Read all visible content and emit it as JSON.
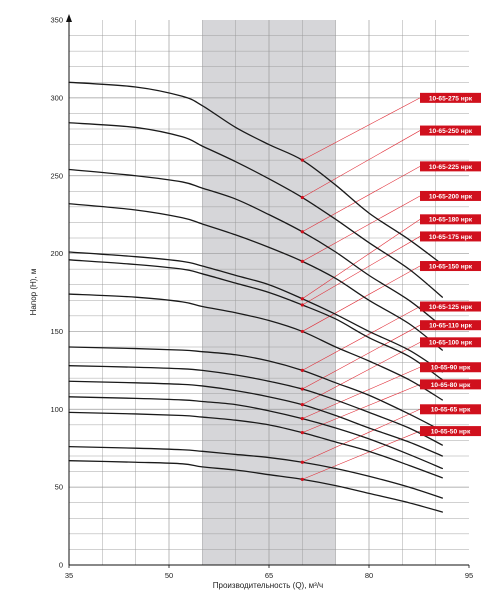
{
  "colors": {
    "curve": "#1a1a1a",
    "grid": "#9a9a9a",
    "band": "#d6d6d9",
    "label_bg": "#d0101d",
    "leader": "#e0303a",
    "marker": "#d0101d"
  },
  "chart_data": {
    "type": "line",
    "xlabel": "Производительность (Q), м³/ч",
    "ylabel": "Напор (H), м",
    "xlim": [
      35,
      95
    ],
    "ylim": [
      0,
      350
    ],
    "x_ticks": [
      "35",
      "50",
      "65",
      "80",
      "95"
    ],
    "y_ticks": [
      "0",
      "50",
      "100",
      "150",
      "200",
      "250",
      "300",
      "350"
    ],
    "grid": true,
    "operating_range": [
      55,
      75
    ],
    "marker_q": 70,
    "series": [
      {
        "name": "10-65-275 нрк",
        "x": [
          35,
          45,
          52,
          55,
          60,
          65,
          70,
          75,
          80,
          86,
          91
        ],
        "y": [
          310,
          307,
          301,
          295,
          281,
          270,
          260,
          244,
          226,
          209,
          193
        ]
      },
      {
        "name": "10-65-250 нрк",
        "x": [
          35,
          45,
          52,
          55,
          60,
          65,
          70,
          75,
          80,
          86,
          91
        ],
        "y": [
          284,
          281,
          275,
          269,
          259,
          248,
          236,
          222,
          207,
          190,
          172
        ]
      },
      {
        "name": "10-65-225 нрк",
        "x": [
          35,
          45,
          52,
          55,
          60,
          65,
          70,
          75,
          80,
          86,
          91
        ],
        "y": [
          254,
          250,
          246,
          242,
          235,
          225,
          214,
          201,
          186,
          170,
          153
        ]
      },
      {
        "name": "10-65-200 нрк",
        "x": [
          35,
          45,
          52,
          55,
          60,
          65,
          70,
          75,
          80,
          86,
          91
        ],
        "y": [
          232,
          228,
          223,
          219,
          212,
          204,
          195,
          184,
          170,
          155,
          138
        ]
      },
      {
        "name": "10-65-180 нрк",
        "x": [
          35,
          45,
          52,
          55,
          60,
          65,
          70,
          75,
          80,
          86,
          91
        ],
        "y": [
          201,
          198,
          195,
          192,
          186,
          180,
          171,
          161,
          150,
          138,
          124
        ]
      },
      {
        "name": "10-65-175 нрк",
        "x": [
          35,
          45,
          52,
          55,
          60,
          65,
          70,
          75,
          80,
          86,
          91
        ],
        "y": [
          196,
          193,
          190,
          187,
          181,
          175,
          167,
          158,
          146,
          134,
          119
        ]
      },
      {
        "name": "10-65-150 нрк",
        "x": [
          35,
          45,
          52,
          55,
          60,
          65,
          70,
          75,
          80,
          86,
          91
        ],
        "y": [
          174,
          172,
          169,
          166,
          162,
          157,
          150,
          140,
          131,
          119,
          106
        ]
      },
      {
        "name": "10-65-125 нрк",
        "x": [
          35,
          45,
          52,
          55,
          60,
          65,
          70,
          75,
          80,
          86,
          91
        ],
        "y": [
          140,
          139,
          138,
          137,
          135,
          131,
          125,
          117,
          109,
          97,
          86
        ]
      },
      {
        "name": "10-65-110 нрк",
        "x": [
          35,
          45,
          52,
          55,
          60,
          65,
          70,
          75,
          80,
          86,
          91
        ],
        "y": [
          128,
          127,
          126,
          125,
          122,
          118,
          113,
          106,
          98,
          88,
          77
        ]
      },
      {
        "name": "10-65-100 нрк",
        "x": [
          35,
          45,
          52,
          55,
          60,
          65,
          70,
          75,
          80,
          86,
          91
        ],
        "y": [
          118,
          117,
          116,
          115,
          112,
          108,
          103,
          96,
          88,
          79,
          70
        ]
      },
      {
        "name": "10-65-90 нрк",
        "x": [
          35,
          45,
          52,
          55,
          60,
          65,
          70,
          75,
          80,
          86,
          91
        ],
        "y": [
          108,
          107,
          106,
          105,
          103,
          99,
          94,
          88,
          81,
          71,
          62
        ]
      },
      {
        "name": "10-65-80 нрк",
        "x": [
          35,
          45,
          52,
          55,
          60,
          65,
          70,
          75,
          80,
          86,
          91
        ],
        "y": [
          98,
          97,
          96,
          95,
          93,
          90,
          85,
          79,
          73,
          64,
          56
        ]
      },
      {
        "name": "10-65-65 нрк",
        "x": [
          35,
          45,
          52,
          55,
          60,
          65,
          70,
          75,
          80,
          86,
          91
        ],
        "y": [
          76,
          75,
          74,
          73,
          71,
          69,
          66,
          62,
          57,
          50,
          43
        ]
      },
      {
        "name": "10-65-50 нрк",
        "x": [
          35,
          45,
          52,
          55,
          60,
          65,
          70,
          75,
          80,
          86,
          91
        ],
        "y": [
          67,
          66,
          65,
          63,
          61,
          58,
          55,
          51,
          46,
          40,
          34
        ]
      }
    ],
    "labels": [
      {
        "text": "10-65-275 нрк",
        "h": 300,
        "target": 260
      },
      {
        "text": "10-65-250 нрк",
        "h": 279,
        "target": 236
      },
      {
        "text": "10-65-225 нрк",
        "h": 256,
        "target": 214
      },
      {
        "text": "10-65-200 нрк",
        "h": 237,
        "target": 195
      },
      {
        "text": "10-65-180 нрк",
        "h": 222,
        "target": 171
      },
      {
        "text": "10-65-175 нрк",
        "h": 211,
        "target": 167
      },
      {
        "text": "10-65-150 нрк",
        "h": 192,
        "target": 150
      },
      {
        "text": "10-65-125 нрк",
        "h": 166,
        "target": 125
      },
      {
        "text": "10-65-110 нрк",
        "h": 154,
        "target": 113
      },
      {
        "text": "10-65-100 нрк",
        "h": 143,
        "target": 103
      },
      {
        "text": "10-65-90 нрк",
        "h": 127,
        "target": 94
      },
      {
        "text": "10-65-80 нрк",
        "h": 116,
        "target": 85
      },
      {
        "text": "10-65-65 нрк",
        "h": 100,
        "target": 66
      },
      {
        "text": "10-65-50 нрк",
        "h": 86,
        "target": 55
      }
    ]
  }
}
